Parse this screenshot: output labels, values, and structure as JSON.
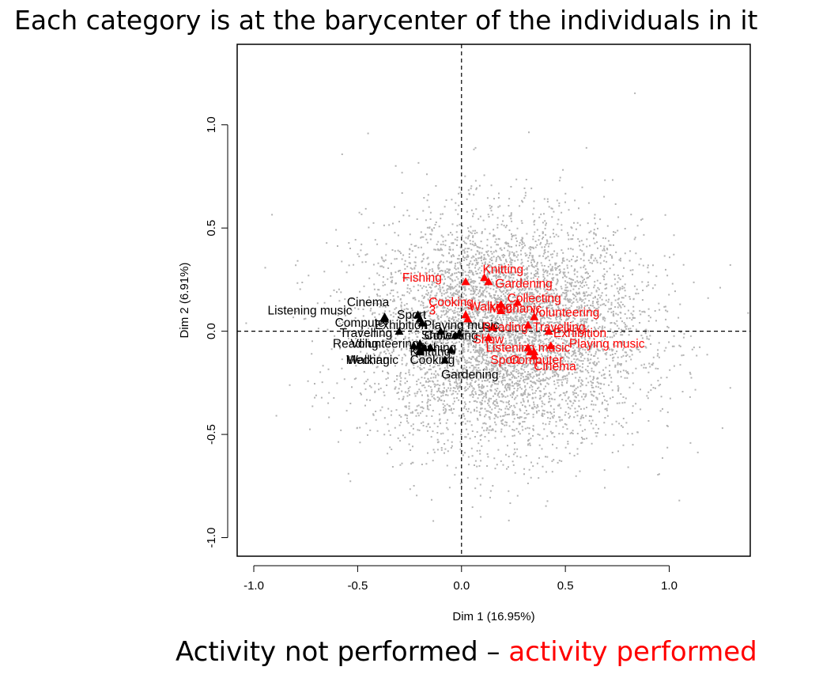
{
  "chart_data": {
    "type": "scatter",
    "title": "Each category is at the barycenter of the individuals in it",
    "xlabel": "Dim 1 (16.95%)",
    "ylabel": "Dim 2 (6.91%)",
    "xlim": [
      -1.08,
      1.39
    ],
    "ylim": [
      -1.09,
      1.39
    ],
    "xticks": [
      -1.0,
      -0.5,
      0.0,
      0.5,
      1.0
    ],
    "yticks": [
      -1.0,
      -0.5,
      0.0,
      0.5,
      1.0
    ],
    "xtick_labels": [
      "-1.0",
      "-0.5",
      "0.0",
      "0.5",
      "1.0"
    ],
    "ytick_labels": [
      "-1.0",
      "-0.5",
      "0.0",
      "0.5",
      "1.0"
    ],
    "reference_lines": {
      "x": 0,
      "y": 0,
      "style": "dashed"
    },
    "grid": false,
    "individuals": {
      "description": "cloud of individuals",
      "color": "#b3b3b3",
      "center": [
        0.2,
        0.0
      ],
      "spread": [
        0.33,
        0.27
      ],
      "count": 6000
    },
    "colors": {
      "not_performed": "#000000",
      "performed": "#ff0000",
      "individuals": "#b3b3b3"
    },
    "series": [
      {
        "name": "Activity not performed",
        "color": "#000000",
        "points": [
          {
            "label": "Cinema",
            "x": -0.37,
            "y": 0.06
          },
          {
            "label": "Listening music",
            "x": -0.37,
            "y": 0.07
          },
          {
            "label": "Sport",
            "x": -0.21,
            "y": 0.08
          },
          {
            "label": "Computer",
            "x": -0.2,
            "y": 0.06
          },
          {
            "label": "Exhibition",
            "x": -0.19,
            "y": 0.04
          },
          {
            "label": "Travelling",
            "x": -0.3,
            "y": 0.0
          },
          {
            "label": "Reading",
            "x": -0.23,
            "y": -0.07
          },
          {
            "label": "Volunteering",
            "x": -0.2,
            "y": -0.06
          },
          {
            "label": "Walking",
            "x": -0.2,
            "y": -0.09
          },
          {
            "label": "Mechanic",
            "x": -0.2,
            "y": -0.1
          },
          {
            "label": "Knitting",
            "x": -0.18,
            "y": -0.08
          },
          {
            "label": "Fishing",
            "x": -0.15,
            "y": -0.08
          },
          {
            "label": "Cooking",
            "x": -0.08,
            "y": -0.14
          },
          {
            "label": "Gardening",
            "x": -0.05,
            "y": -0.09
          },
          {
            "label": "Show",
            "x": -0.1,
            "y": 0.0
          },
          {
            "label": "Collecting",
            "x": -0.03,
            "y": -0.02
          },
          {
            "label": "Playing music",
            "x": -0.01,
            "y": -0.01
          }
        ]
      },
      {
        "name": "activity performed",
        "color": "#ff0000",
        "points": [
          {
            "label": "Knitting",
            "x": 0.11,
            "y": 0.26
          },
          {
            "label": "Fishing",
            "x": 0.02,
            "y": 0.24
          },
          {
            "label": "Gardening",
            "x": 0.13,
            "y": 0.24
          },
          {
            "label": "Cooking",
            "x": 0.02,
            "y": 0.08
          },
          {
            "label": "3",
            "x": 0.03,
            "y": 0.06
          },
          {
            "label": "Walking",
            "x": 0.19,
            "y": 0.13
          },
          {
            "label": "Mechanic",
            "x": 0.19,
            "y": 0.1
          },
          {
            "label": "Collecting",
            "x": 0.27,
            "y": 0.14
          },
          {
            "label": "Volunteering",
            "x": 0.35,
            "y": 0.07
          },
          {
            "label": "Travelling",
            "x": 0.32,
            "y": 0.03
          },
          {
            "label": "Reading",
            "x": 0.15,
            "y": 0.02
          },
          {
            "label": "Show",
            "x": 0.13,
            "y": -0.03
          },
          {
            "label": "Exhibition",
            "x": 0.42,
            "y": 0.0
          },
          {
            "label": "Playing music",
            "x": 0.43,
            "y": -0.07
          },
          {
            "label": "Listening music",
            "x": 0.32,
            "y": -0.08
          },
          {
            "label": "Sport",
            "x": 0.33,
            "y": -0.1
          },
          {
            "label": "Computer",
            "x": 0.35,
            "y": -0.1
          },
          {
            "label": "Cinema",
            "x": 0.35,
            "y": -0.12
          }
        ]
      }
    ],
    "labels": [
      {
        "text": "Cinema",
        "series": 0,
        "x": -0.45,
        "y": 0.14
      },
      {
        "text": "Listening music",
        "series": 0,
        "x": -0.73,
        "y": 0.1
      },
      {
        "text": "Sport",
        "series": 0,
        "x": -0.24,
        "y": 0.08
      },
      {
        "text": "Computer",
        "series": 0,
        "x": -0.48,
        "y": 0.04
      },
      {
        "text": "Exhibition",
        "series": 0,
        "x": -0.29,
        "y": 0.03
      },
      {
        "text": "Travelling",
        "series": 0,
        "x": -0.46,
        "y": -0.01
      },
      {
        "text": "Reading",
        "series": 0,
        "x": -0.51,
        "y": -0.06
      },
      {
        "text": "Volunteering",
        "series": 0,
        "x": -0.37,
        "y": -0.06
      },
      {
        "text": "Walking",
        "series": 0,
        "x": -0.45,
        "y": -0.14
      },
      {
        "text": "Mechanic",
        "series": 0,
        "x": -0.43,
        "y": -0.14
      },
      {
        "text": "Knitting",
        "series": 0,
        "x": -0.15,
        "y": -0.1
      },
      {
        "text": "Fishing",
        "series": 0,
        "x": -0.12,
        "y": -0.08
      },
      {
        "text": "Cooking",
        "series": 0,
        "x": -0.14,
        "y": -0.14
      },
      {
        "text": "Gardening",
        "series": 0,
        "x": 0.04,
        "y": -0.21
      },
      {
        "text": "Playing music",
        "series": 0,
        "x": 0.0,
        "y": 0.03
      },
      {
        "text": "Show",
        "series": 0,
        "x": -0.12,
        "y": -0.02
      },
      {
        "text": "Collecting",
        "series": 0,
        "x": -0.05,
        "y": -0.02
      },
      {
        "text": "Knitting",
        "series": 1,
        "x": 0.2,
        "y": 0.3
      },
      {
        "text": "Fishing",
        "series": 1,
        "x": -0.19,
        "y": 0.26
      },
      {
        "text": "Gardening",
        "series": 1,
        "x": 0.3,
        "y": 0.23
      },
      {
        "text": "Cooking",
        "series": 1,
        "x": -0.05,
        "y": 0.14
      },
      {
        "text": "Collecting",
        "series": 1,
        "x": 0.35,
        "y": 0.16
      },
      {
        "text": "Walking",
        "series": 1,
        "x": 0.14,
        "y": 0.12
      },
      {
        "text": "Mechanic",
        "series": 1,
        "x": 0.26,
        "y": 0.11
      },
      {
        "text": "3",
        "series": 1,
        "x": -0.14,
        "y": 0.1
      },
      {
        "text": "Volunteering",
        "series": 1,
        "x": 0.5,
        "y": 0.09
      },
      {
        "text": "Travelling",
        "series": 1,
        "x": 0.47,
        "y": 0.02
      },
      {
        "text": "Reading",
        "series": 1,
        "x": 0.21,
        "y": 0.02
      },
      {
        "text": "Exhibition",
        "series": 1,
        "x": 0.57,
        "y": -0.01
      },
      {
        "text": "Show",
        "series": 1,
        "x": 0.13,
        "y": -0.04
      },
      {
        "text": "Playing music",
        "series": 1,
        "x": 0.7,
        "y": -0.06
      },
      {
        "text": "Listening music",
        "series": 1,
        "x": 0.32,
        "y": -0.08
      },
      {
        "text": "Sport",
        "series": 1,
        "x": 0.21,
        "y": -0.14
      },
      {
        "text": "Computer",
        "series": 1,
        "x": 0.36,
        "y": -0.14
      },
      {
        "text": "Cinema",
        "series": 1,
        "x": 0.45,
        "y": -0.17
      }
    ],
    "caption": {
      "prefix": "Activity not performed – ",
      "highlight": "activity performed",
      "prefix_color": "#000000",
      "highlight_color": "#ff0000"
    }
  }
}
